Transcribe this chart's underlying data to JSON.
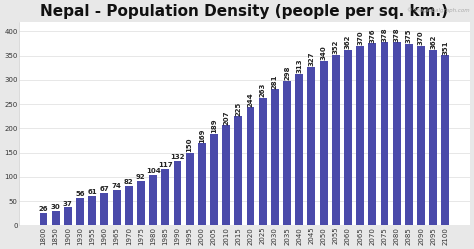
{
  "title": "Nepal - Population Density (people per sq. km.)",
  "watermark": "© theglobalgraph.com",
  "categories": [
    "1800",
    "1850",
    "1900",
    "1930",
    "1955",
    "1960",
    "1965",
    "1970",
    "1975",
    "1980",
    "1985",
    "1990",
    "1995",
    "2000",
    "2005",
    "2010",
    "2015",
    "2020",
    "2025",
    "2030",
    "2035",
    "2040",
    "2045",
    "2050",
    "2055",
    "2060",
    "2065",
    "2070",
    "2075",
    "2080",
    "2085",
    "2090",
    "2095",
    "2100"
  ],
  "values": [
    26,
    30,
    37,
    56,
    61,
    67,
    74,
    82,
    92,
    104,
    117,
    132,
    150,
    169,
    189,
    207,
    225,
    244,
    263,
    281,
    298,
    313,
    327,
    340,
    352,
    362,
    370,
    376,
    378,
    378,
    375,
    370,
    362,
    351
  ],
  "bar_color": "#4a4aaa",
  "bg_color": "#e8e8e8",
  "plot_bg_color": "#ffffff",
  "title_fontsize": 11,
  "label_fontsize": 5.0,
  "tick_fontsize": 5.0,
  "ylim": [
    0,
    420
  ],
  "yticks": [
    0,
    50,
    100,
    150,
    200,
    250,
    300,
    350,
    400
  ],
  "rotate_threshold": 12
}
